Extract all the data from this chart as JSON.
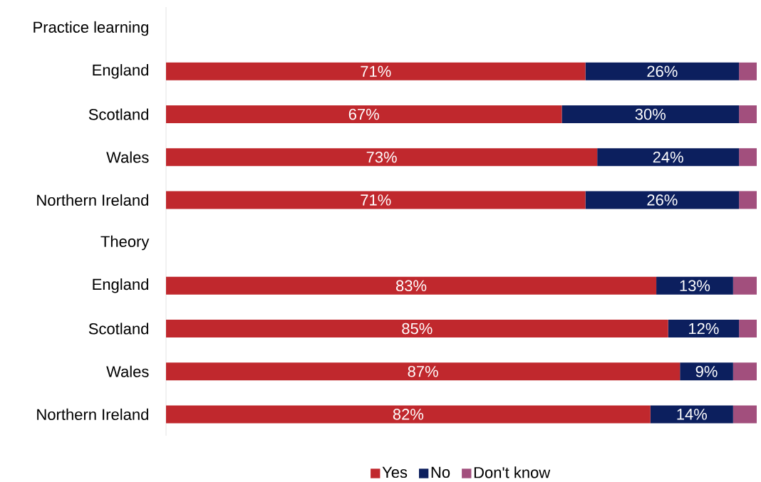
{
  "chart_data": {
    "type": "bar",
    "orientation": "horizontal",
    "stacked": true,
    "legend": "bottom",
    "categories": [
      "Practice learning",
      "England",
      "Scotland",
      "Wales",
      "Northern Ireland",
      "Theory",
      "England",
      "Scotland",
      "Wales",
      "Northern Ireland"
    ],
    "series": [
      {
        "name": "Yes",
        "color": "#c0282d",
        "values": [
          null,
          71,
          67,
          73,
          71,
          null,
          83,
          85,
          87,
          82
        ],
        "value_labels": [
          null,
          "71%",
          "67%",
          "73%",
          "71%",
          null,
          "83%",
          "85%",
          "87%",
          "82%"
        ]
      },
      {
        "name": "No",
        "color": "#0c1f5e",
        "values": [
          null,
          26,
          30,
          24,
          26,
          null,
          13,
          12,
          9,
          14
        ],
        "value_labels": [
          null,
          "26%",
          "30%",
          "24%",
          "26%",
          null,
          "13%",
          "12%",
          "9%",
          "14%"
        ]
      },
      {
        "name": "Don't know",
        "color": "#a24f7d",
        "values": [
          null,
          3,
          3,
          3,
          3,
          null,
          4,
          3,
          4,
          4
        ]
      }
    ]
  }
}
